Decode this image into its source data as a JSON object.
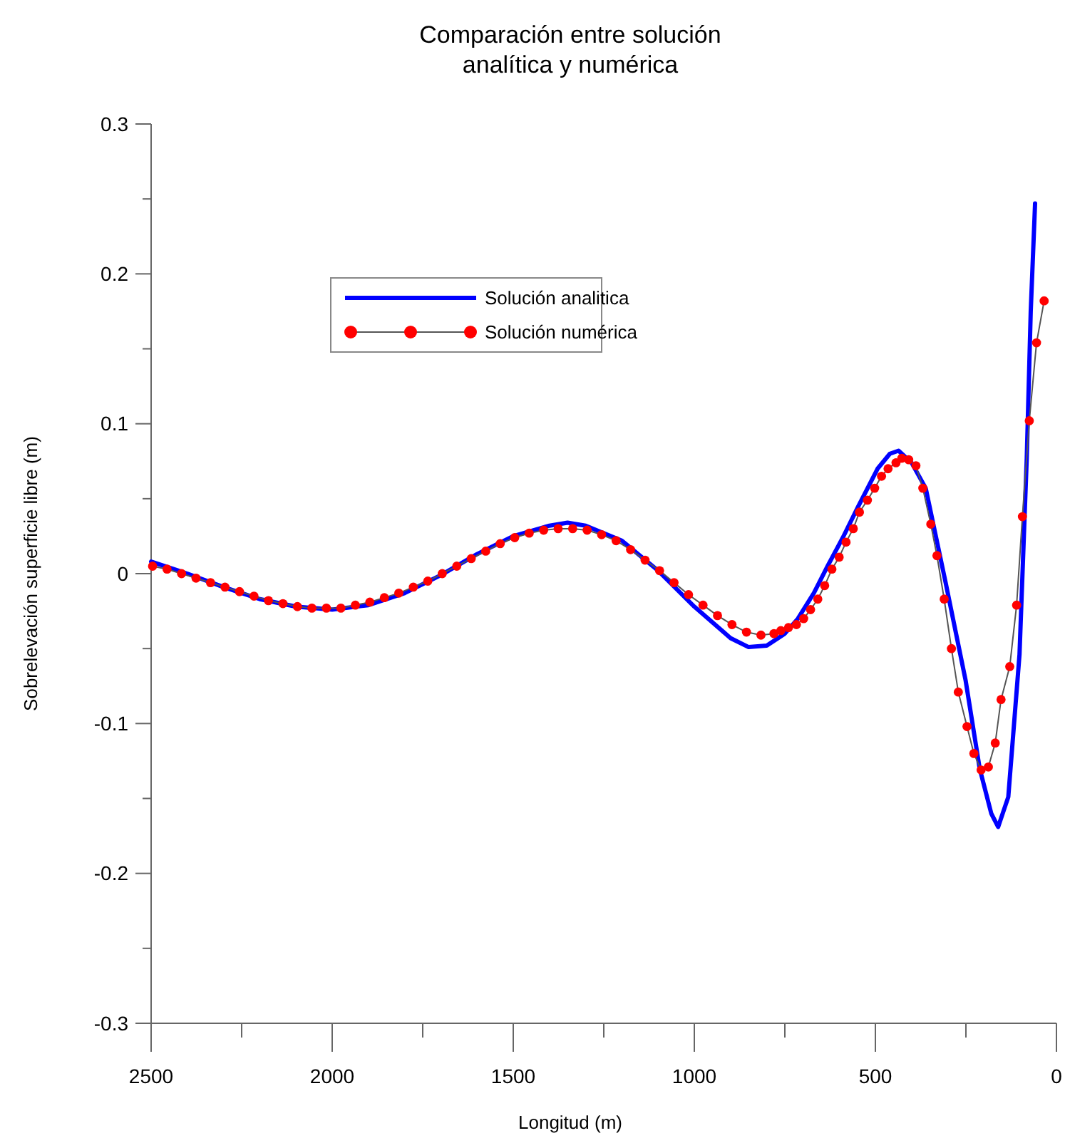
{
  "chart_data": {
    "type": "line",
    "title": "Comparación entre solución\nanalítica y numérica",
    "xlabel": "Longitud (m)",
    "ylabel": "Sobrelevación superficie libre (m)",
    "xlim": [
      2500,
      0
    ],
    "xticks": [
      2500,
      {
        "value": 2250,
        "label": null
      },
      2000,
      {
        "value": 1750,
        "label": null
      },
      1500,
      {
        "value": 1250,
        "label": null
      },
      1000,
      {
        "value": 750,
        "label": null
      },
      500,
      {
        "value": 250,
        "label": null
      },
      0
    ],
    "ylim": [
      -0.3,
      0.3
    ],
    "yticks": [
      -0.3,
      {
        "value": -0.25,
        "label": null
      },
      -0.2,
      {
        "value": -0.15,
        "label": null
      },
      -0.1,
      {
        "value": -0.05,
        "label": null
      },
      0,
      {
        "value": 0.05,
        "label": null
      },
      0.1,
      {
        "value": 0.15,
        "label": null
      },
      0.2,
      {
        "value": 0.25,
        "label": null
      },
      0.3
    ],
    "grid": false,
    "legend": "top left",
    "series": [
      {
        "name": "Solución analitica",
        "color": "#0000ff",
        "marker": "none",
        "line_style": "solid",
        "x": [
          2500,
          2400,
          2300,
          2200,
          2100,
          2000,
          1900,
          1800,
          1700,
          1600,
          1500,
          1400,
          1350,
          1300,
          1200,
          1100,
          1000,
          900,
          850,
          800,
          750,
          714,
          670,
          632,
          590,
          549,
          494,
          460,
          436,
          400,
          361,
          306,
          251,
          212,
          180,
          161,
          133,
          102,
          82,
          71,
          59
        ],
        "values": [
          0.008,
          0.0,
          -0.009,
          -0.017,
          -0.022,
          -0.024,
          -0.021,
          -0.013,
          -0.001,
          0.013,
          0.025,
          0.032,
          0.034,
          0.032,
          0.022,
          0.002,
          -0.022,
          -0.043,
          -0.049,
          -0.048,
          -0.04,
          -0.03,
          -0.013,
          0.005,
          0.024,
          0.044,
          0.07,
          0.08,
          0.082,
          0.074,
          0.057,
          -0.006,
          -0.071,
          -0.13,
          -0.16,
          -0.169,
          -0.149,
          -0.054,
          0.077,
          0.175,
          0.247
        ]
      },
      {
        "name": "Solución numérica",
        "color": "#ff0000",
        "marker": "circle",
        "line_style": "solid",
        "x": [
          2496,
          2456,
          2416,
          2376,
          2336,
          2296,
          2256,
          2216,
          2176,
          2136,
          2096,
          2056,
          2016,
          1976,
          1936,
          1896,
          1856,
          1816,
          1776,
          1736,
          1696,
          1656,
          1616,
          1576,
          1536,
          1496,
          1456,
          1416,
          1376,
          1336,
          1296,
          1256,
          1216,
          1176,
          1136,
          1096,
          1056,
          1016,
          976,
          936,
          896,
          856,
          816,
          780,
          761,
          740,
          718,
          698,
          679,
          659,
          640,
          620,
          600,
          581,
          561,
          544,
          522,
          502,
          483,
          465,
          443,
          427,
          408,
          388,
          369,
          347,
          330,
          310,
          290,
          271,
          247,
          228,
          208,
          188,
          169,
          153,
          129,
          110,
          94,
          75,
          55,
          34
        ],
        "values": [
          0.005,
          0.003,
          0.0,
          -0.003,
          -0.006,
          -0.009,
          -0.012,
          -0.015,
          -0.018,
          -0.02,
          -0.022,
          -0.023,
          -0.023,
          -0.023,
          -0.021,
          -0.019,
          -0.016,
          -0.013,
          -0.009,
          -0.005,
          0.0,
          0.005,
          0.01,
          0.015,
          0.02,
          0.024,
          0.027,
          0.029,
          0.03,
          0.03,
          0.029,
          0.026,
          0.022,
          0.016,
          0.009,
          0.002,
          -0.006,
          -0.014,
          -0.021,
          -0.028,
          -0.034,
          -0.039,
          -0.041,
          -0.04,
          -0.038,
          -0.036,
          -0.034,
          -0.03,
          -0.024,
          -0.017,
          -0.008,
          0.003,
          0.011,
          0.021,
          0.03,
          0.041,
          0.049,
          0.057,
          0.065,
          0.07,
          0.074,
          0.077,
          0.076,
          0.072,
          0.057,
          0.033,
          0.012,
          -0.017,
          -0.05,
          -0.079,
          -0.102,
          -0.12,
          -0.131,
          -0.129,
          -0.113,
          -0.084,
          -0.062,
          -0.021,
          0.038,
          0.102,
          0.154,
          0.182
        ]
      }
    ]
  }
}
